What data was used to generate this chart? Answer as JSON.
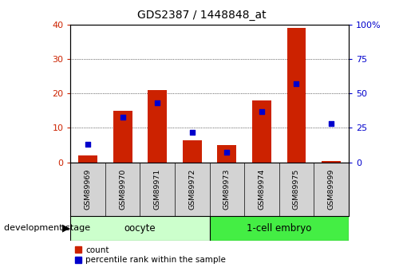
{
  "title": "GDS2387 / 1448848_at",
  "samples": [
    "GSM89969",
    "GSM89970",
    "GSM89971",
    "GSM89972",
    "GSM89973",
    "GSM89974",
    "GSM89975",
    "GSM89999"
  ],
  "count": [
    2,
    15,
    21,
    6.5,
    5,
    18,
    39,
    0.3
  ],
  "percentile": [
    13,
    33,
    43,
    22,
    7,
    37,
    57,
    28
  ],
  "groups": [
    {
      "label": "oocyte",
      "start": 0,
      "end": 3,
      "color": "#CCFFCC"
    },
    {
      "label": "1-cell embryo",
      "start": 4,
      "end": 7,
      "color": "#44EE44"
    }
  ],
  "bar_color": "#CC2200",
  "percentile_color": "#0000CC",
  "ylim_left": [
    0,
    40
  ],
  "ylim_right": [
    0,
    100
  ],
  "yticks_left": [
    0,
    10,
    20,
    30,
    40
  ],
  "yticks_right": [
    0,
    25,
    50,
    75,
    100
  ],
  "ytick_labels_right": [
    "0",
    "25",
    "50",
    "75",
    "100%"
  ],
  "bar_width": 0.55,
  "left_axis_color": "#CC2200",
  "right_axis_color": "#0000CC",
  "title_fontsize": 10,
  "background_color": "#ffffff",
  "plot_bg_color": "#ffffff",
  "tick_label_area_color": "#d3d3d3",
  "stage_label": "development stage",
  "legend_count": "count",
  "legend_percentile": "percentile rank within the sample"
}
